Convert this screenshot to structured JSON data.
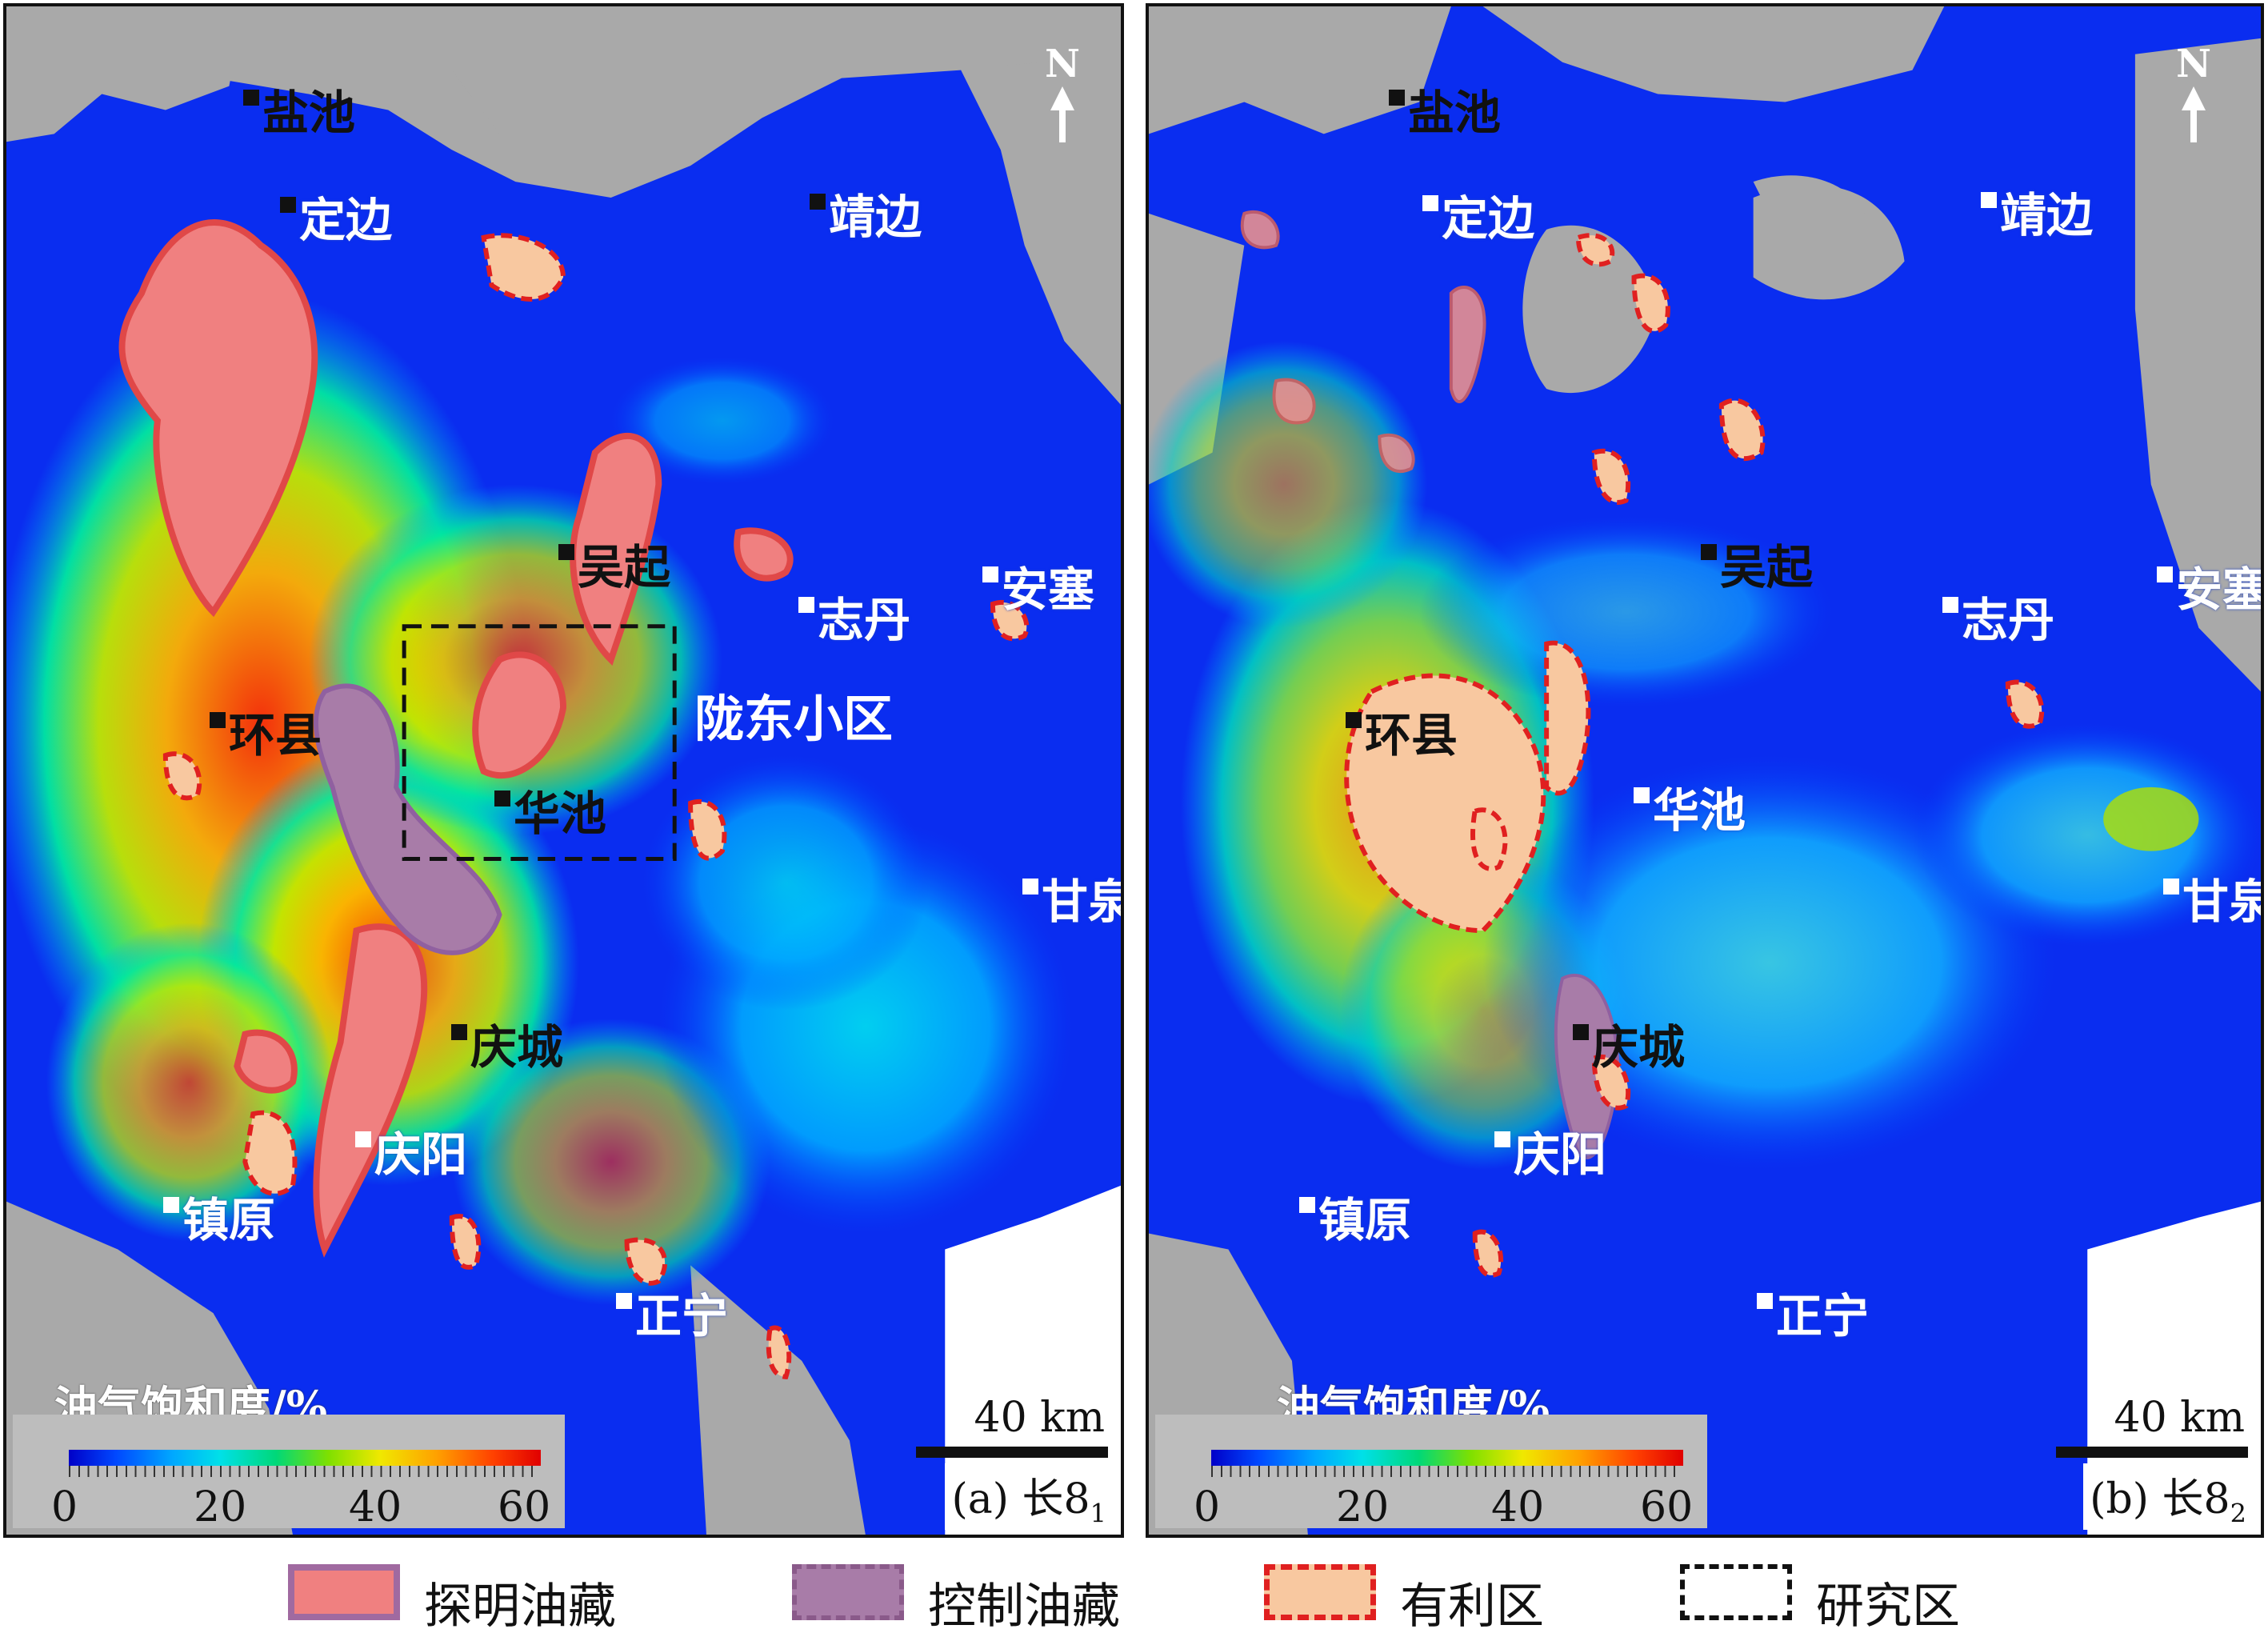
{
  "panels": {
    "a": {
      "caption": "(a) 长8",
      "caption_sub": "1",
      "legend_title": "油气饱和度/%",
      "colorbar_ticks": [
        "0",
        "20",
        "40",
        "60"
      ],
      "scale": "40 km",
      "north": "N",
      "study_area_label": "陇东小区",
      "cities": {
        "yanchi": "盐池",
        "dingbian": "定边",
        "jingbian": "靖边",
        "wuqi": "吴起",
        "zhidan": "志丹",
        "ansai": "安塞",
        "huanxian": "环县",
        "huachi": "华池",
        "ganquan": "甘泉",
        "qingcheng": "庆城",
        "qingyang": "庆阳",
        "zhenyuan": "镇原",
        "zhengning": "正宁"
      }
    },
    "b": {
      "caption": "(b) 长8",
      "caption_sub": "2",
      "legend_title": "油气饱和度/%",
      "colorbar_ticks": [
        "0",
        "20",
        "40",
        "60"
      ],
      "scale": "40 km",
      "north": "N",
      "cities": {
        "yanchi": "盐池",
        "dingbian": "定边",
        "jingbian": "靖边",
        "wuqi": "吴起",
        "zhidan": "志丹",
        "ansai": "安塞",
        "huanxian": "环县",
        "huachi": "华池",
        "ganquan": "甘泉",
        "qingcheng": "庆城",
        "qingyang": "庆阳",
        "zhenyuan": "镇原",
        "zhengning": "正宁"
      }
    }
  },
  "legend": {
    "proven": "探明油藏",
    "controlled": "控制油藏",
    "favorable": "有利区",
    "study": "研究区"
  },
  "colors": {
    "background_gray": "#a9a9a9",
    "low_saturation_blue": "#0a2df0",
    "proven_fill": "#f08080",
    "proven_stroke": "#e04848",
    "controlled_fill": "#a87ca8",
    "favorable_fill": "#f8c8a0",
    "favorable_stroke": "#e02020"
  }
}
